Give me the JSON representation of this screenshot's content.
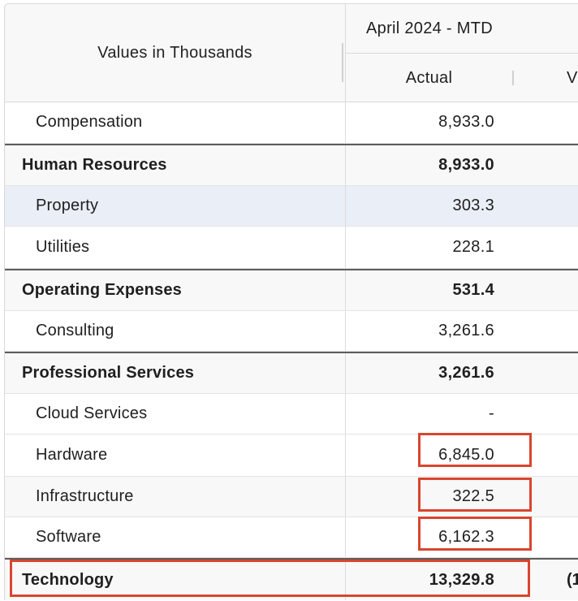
{
  "header": {
    "row_label": "Values in Thousands",
    "period": "April 2024 - MTD",
    "actual_label": "Actual",
    "next_column_partial": "V"
  },
  "rows": [
    {
      "label": "Compensation",
      "actual": "8,933.0",
      "type": "item"
    },
    {
      "label": "Human Resources",
      "actual": "8,933.0",
      "type": "total"
    },
    {
      "label": "Property",
      "actual": "303.3",
      "type": "item",
      "selected": true
    },
    {
      "label": "Utilities",
      "actual": "228.1",
      "type": "item"
    },
    {
      "label": "Operating Expenses",
      "actual": "531.4",
      "type": "total"
    },
    {
      "label": "Consulting",
      "actual": "3,261.6",
      "type": "item"
    },
    {
      "label": "Professional Services",
      "actual": "3,261.6",
      "type": "total"
    },
    {
      "label": "Cloud Services",
      "actual": "-",
      "type": "item"
    },
    {
      "label": "Hardware",
      "actual": "6,845.0",
      "type": "item",
      "highlighted": true
    },
    {
      "label": "Infrastructure",
      "actual": "322.5",
      "type": "item",
      "highlighted": true
    },
    {
      "label": "Software",
      "actual": "6,162.3",
      "type": "item",
      "highlighted": true
    },
    {
      "label": "Technology",
      "actual": "13,329.8",
      "type": "total",
      "highlighted": true,
      "next_partial": "(1"
    }
  ],
  "colors": {
    "highlight": "#d9452e",
    "total_border": "#5d5d5d",
    "selected_row": "#eaeef6",
    "header_bg": "#f8f8f8"
  }
}
